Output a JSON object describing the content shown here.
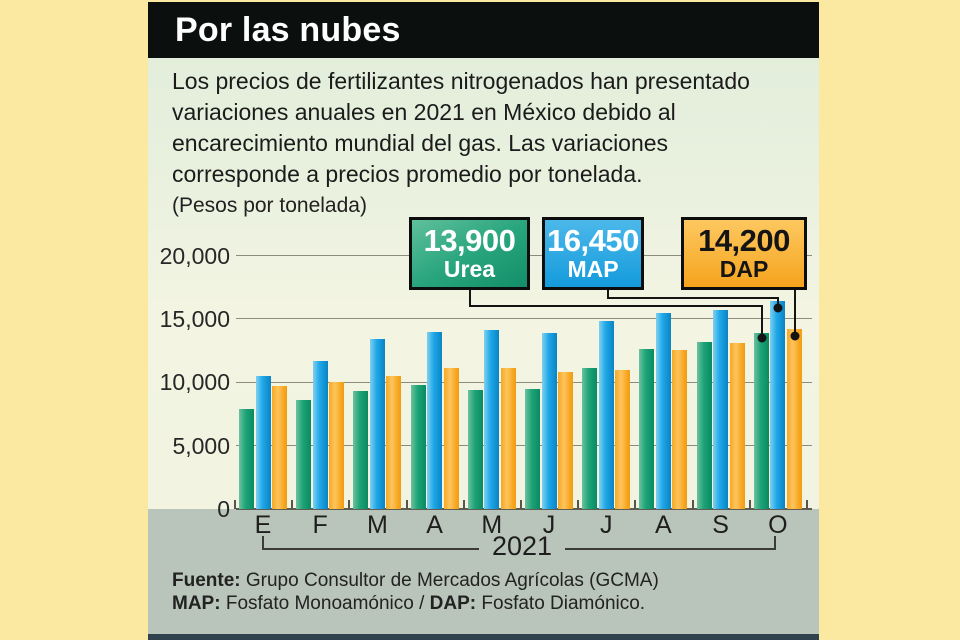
{
  "title": "Por las nubes",
  "intro": "Los precios de fertilizantes nitrogenados han presentado\nvariaciones anuales en 2021 en México debido al\nencarecimiento mundial del gas. Las variaciones\ncorresponde a precios promedio por tonelada.",
  "units_label": "(Pesos por tonelada)",
  "callouts": [
    {
      "id": "urea",
      "value": "13,900",
      "label": "Urea",
      "color": "#1da377"
    },
    {
      "id": "map",
      "value": "16,450",
      "label": "MAP",
      "color": "#1ea7e7"
    },
    {
      "id": "dap",
      "value": "14,200",
      "label": "DAP",
      "color": "#f7a824"
    }
  ],
  "chart_data": {
    "type": "bar",
    "title": "Por las nubes",
    "ylabel": "(Pesos por tonelada)",
    "categories": [
      "E",
      "F",
      "M",
      "A",
      "M",
      "J",
      "J",
      "A",
      "S",
      "O"
    ],
    "series": [
      {
        "name": "Urea",
        "color": "#1da377",
        "values": [
          7900,
          8600,
          9300,
          9800,
          9400,
          9500,
          11100,
          12650,
          13200,
          13900
        ]
      },
      {
        "name": "MAP",
        "color": "#1ea7e7",
        "values": [
          10500,
          11700,
          13400,
          14000,
          14100,
          13900,
          14850,
          15500,
          15700,
          16450
        ]
      },
      {
        "name": "DAP",
        "color": "#f7a824",
        "values": [
          9700,
          10000,
          10500,
          11100,
          11100,
          10800,
          11000,
          12550,
          13100,
          14200
        ]
      }
    ],
    "ylim": [
      0,
      20000
    ],
    "yticks": [
      0,
      5000,
      10000,
      15000,
      20000
    ],
    "ytick_labels": [
      "0",
      "5,000",
      "10,000",
      "15,000",
      "20,000"
    ],
    "grid": true,
    "legend_position": "callout boxes above chart, connected to October bars",
    "x_period_label": "2021"
  },
  "bracket_label": "2021",
  "footer": {
    "line1": [
      {
        "t": "Fuente:",
        "b": true
      },
      {
        "t": " Grupo Consultor de Mercados Agrícolas (GCMA)",
        "b": false
      }
    ],
    "line2": [
      {
        "t": "MAP:",
        "b": true
      },
      {
        "t": " Fosfato Monoamónico / ",
        "b": false
      },
      {
        "t": "DAP:",
        "b": true
      },
      {
        "t": " Fosfato Diamónico.",
        "b": false
      }
    ]
  },
  "colors": {
    "background_frame": "#fbe9a1",
    "title_bar": "#0b100e",
    "panel_top": "#e3eedb",
    "panel_bottom": "#f2f3e1",
    "axis_band": "#b9c5ba",
    "bottom_strip": "#31424f",
    "connector": "#141414"
  }
}
